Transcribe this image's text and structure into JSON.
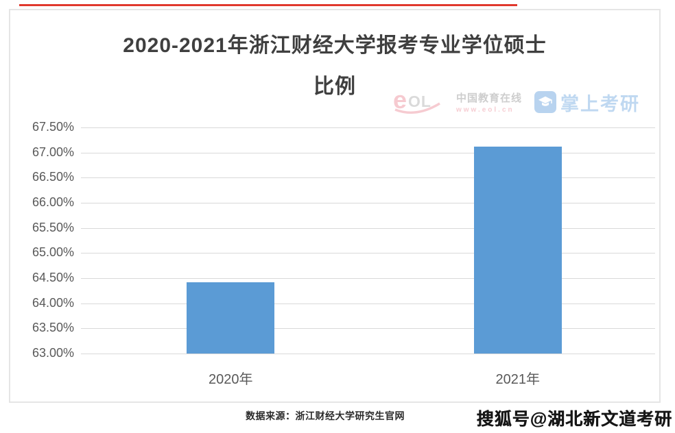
{
  "page": {
    "top_accent_color": "#e0382c",
    "background": "#ffffff"
  },
  "chart_card": {
    "title_line1": "2020-2021年浙江财经大学报考专业学位硕士",
    "title_line2": "比例"
  },
  "brand": {
    "eol_e": "e",
    "eol_ol": "OL",
    "cn_name": "中国教育在线",
    "cn_url": "www.eol.cn",
    "app_name": "掌上考研",
    "eol_pink": "#efa0ab",
    "eol_gray": "#bdbdbd",
    "app_blue": "#8cb9e6"
  },
  "chart_data": {
    "type": "bar",
    "title": "2020-2021年浙江财经大学报考专业学位硕士比例",
    "categories": [
      "2020年",
      "2021年"
    ],
    "values": [
      64.42,
      67.12
    ],
    "value_unit": "%",
    "ylim": [
      63.0,
      67.5
    ],
    "ytick_step": 0.5,
    "ytick_labels": [
      "67.50%",
      "67.00%",
      "66.50%",
      "66.00%",
      "65.50%",
      "65.00%",
      "64.50%",
      "64.00%",
      "63.50%",
      "63.00%"
    ],
    "xlabel": "",
    "ylabel": "",
    "grid": true,
    "legend": false,
    "bar_color": "#5b9bd5",
    "gridline_color": "#d9d9d9",
    "axis_text_color": "#595959"
  },
  "footer": {
    "source_label": "数据来源：",
    "source_value": "浙江财经大学研究生官网",
    "watermark": "搜狐号@湖北新文道考研"
  }
}
